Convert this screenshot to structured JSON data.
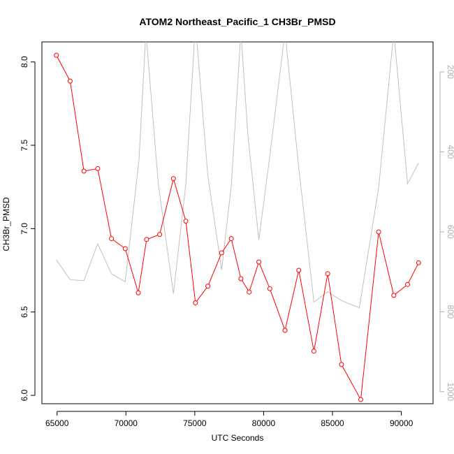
{
  "chart_data": {
    "type": "line",
    "title": "ATOM2 Northeast_Pacific_1 CH3Br_PMSD",
    "xlabel": "UTC Seconds",
    "ylabel": "CH3Br_PMSD",
    "xlim": [
      63900,
      92300
    ],
    "ylim": [
      5.95,
      8.12
    ],
    "x_ticks": [
      65000,
      70000,
      75000,
      80000,
      85000,
      90000
    ],
    "y_ticks": [
      6.0,
      6.5,
      7.0,
      7.5,
      8.0
    ],
    "y_tick_labels": [
      "6.0",
      "6.5",
      "7.0",
      "7.5",
      "8.0"
    ],
    "y2lim": [
      1030,
      125
    ],
    "y2_ticks": [
      200,
      400,
      600,
      800,
      1000
    ],
    "colors": {
      "primary": "#ff0000",
      "secondary": "#c0c0c0",
      "axis": "#000000",
      "secondary_axis": "#b0b0b0"
    },
    "series": [
      {
        "axis": "left",
        "marker": "open-circle",
        "points": [
          [
            64950,
            8.04
          ],
          [
            65950,
            7.885
          ],
          [
            66950,
            7.345
          ],
          [
            67950,
            7.36
          ],
          [
            68950,
            6.94
          ],
          [
            69950,
            6.88
          ],
          [
            70900,
            6.615
          ],
          [
            71500,
            6.935
          ],
          [
            72450,
            6.965
          ],
          [
            73450,
            7.3
          ],
          [
            74350,
            7.045
          ],
          [
            75050,
            6.555
          ],
          [
            75950,
            6.655
          ],
          [
            76950,
            6.855
          ],
          [
            77650,
            6.94
          ],
          [
            78350,
            6.7
          ],
          [
            78950,
            6.62
          ],
          [
            79650,
            6.8
          ],
          [
            80450,
            6.64
          ],
          [
            81550,
            6.39
          ],
          [
            82550,
            6.75
          ],
          [
            83650,
            6.265
          ],
          [
            84650,
            6.73
          ],
          [
            85650,
            6.185
          ],
          [
            87050,
            5.975
          ],
          [
            88350,
            6.98
          ],
          [
            89450,
            6.6
          ],
          [
            90450,
            6.665
          ],
          [
            91250,
            6.795
          ]
        ]
      },
      {
        "axis": "right",
        "marker": "none",
        "points": [
          [
            64950,
            670
          ],
          [
            65950,
            720
          ],
          [
            66950,
            722
          ],
          [
            67950,
            630
          ],
          [
            68950,
            705
          ],
          [
            69950,
            725
          ],
          [
            70950,
            420
          ],
          [
            71450,
            100
          ],
          [
            72350,
            480
          ],
          [
            73450,
            755
          ],
          [
            74350,
            480
          ],
          [
            75050,
            80
          ],
          [
            75950,
            460
          ],
          [
            76950,
            695
          ],
          [
            77650,
            485
          ],
          [
            78350,
            100
          ],
          [
            78850,
            355
          ],
          [
            79650,
            620
          ],
          [
            80450,
            410
          ],
          [
            81550,
            100
          ],
          [
            82550,
            440
          ],
          [
            83650,
            776
          ],
          [
            84650,
            750
          ],
          [
            85650,
            772
          ],
          [
            86950,
            790
          ],
          [
            88350,
            490
          ],
          [
            89450,
            100
          ],
          [
            90450,
            480
          ],
          [
            91250,
            428
          ]
        ]
      }
    ]
  }
}
